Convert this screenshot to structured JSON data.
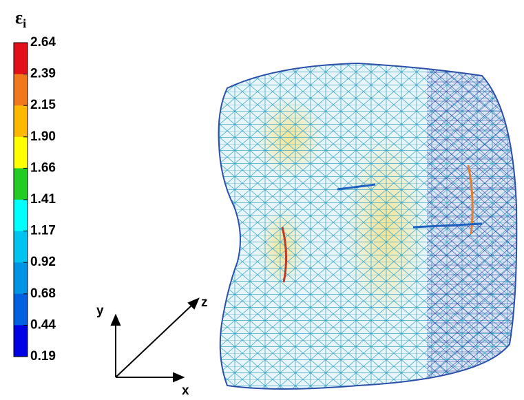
{
  "colorbar": {
    "label": "ε",
    "label_subscript": "i",
    "ticks": [
      "2.64",
      "2.39",
      "2.15",
      "1.90",
      "1.66",
      "1.41",
      "1.17",
      "0.92",
      "0.68",
      "0.44",
      "0.19"
    ],
    "colors": [
      "#e3101a",
      "#f2781e",
      "#ffb800",
      "#ffff00",
      "#22cc22",
      "#00ffff",
      "#00c4ef",
      "#0094e4",
      "#0060e0",
      "#0000e2"
    ]
  },
  "axes": {
    "x": "x",
    "y": "y",
    "z": "z"
  }
}
